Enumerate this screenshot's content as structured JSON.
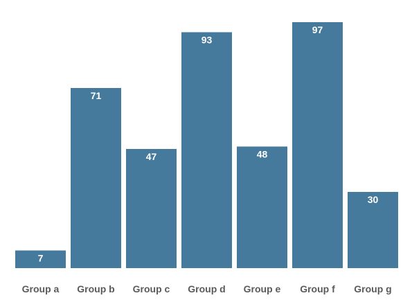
{
  "chart_data": {
    "type": "bar",
    "title": "",
    "xlabel": "",
    "ylabel": "",
    "categories": [
      "Group a",
      "Group b",
      "Group c",
      "Group d",
      "Group e",
      "Group f",
      "Group g"
    ],
    "values": [
      7,
      71,
      47,
      93,
      48,
      97,
      30
    ],
    "ylim": [
      0,
      100
    ],
    "grid": false,
    "legend": "none",
    "bar_color": "#467a9c",
    "value_label_color": "#ffffff",
    "category_label_color": "#5a5a5a"
  }
}
